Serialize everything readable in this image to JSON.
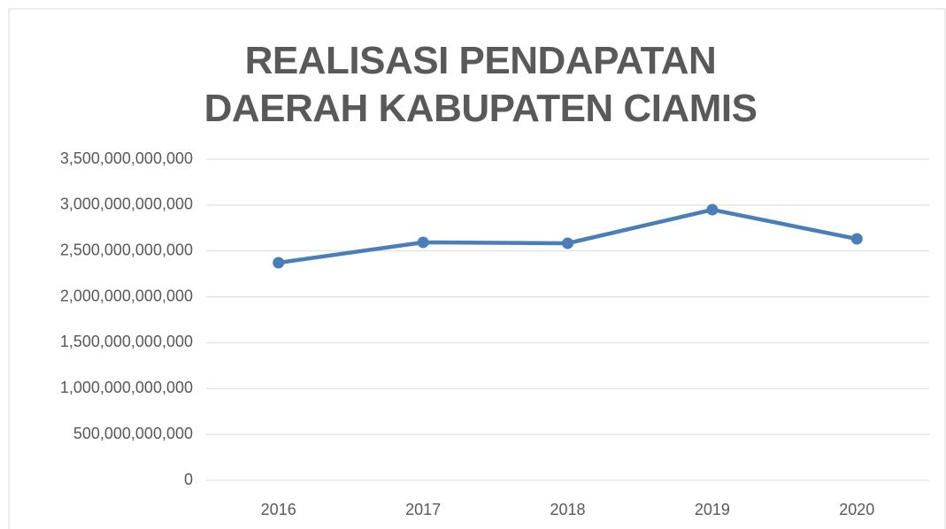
{
  "chart_data": {
    "type": "line",
    "title": "REALISASI PENDAPATAN DAERAH KABUPATEN CIAMIS",
    "categories": [
      "2016",
      "2017",
      "2018",
      "2019",
      "2020"
    ],
    "series": [
      {
        "name": "Realisasi Pendapatan Daerah",
        "color": "#4a7ebb",
        "values": [
          2372000000000,
          2594000000000,
          2584000000000,
          2950000000000,
          2632000000000
        ]
      }
    ],
    "ylim": [
      0,
      3500000000000
    ],
    "yticks": [
      0,
      {
        "value": 500000000000,
        "label": "500,000,000,000"
      },
      {
        "value": 1000000000000,
        "label": "1,000,000,000,000"
      },
      {
        "value": 1500000000000,
        "label": "1,500,000,000,000"
      },
      {
        "value": 2000000000000,
        "label": "2,000,000,000,000"
      },
      {
        "value": 2500000000000,
        "label": "2,500,000,000,000"
      },
      {
        "value": 3000000000000,
        "label": "3,000,000,000,000"
      },
      {
        "value": 3500000000000,
        "label": "3,500,000,000,000"
      }
    ],
    "grid": true
  }
}
